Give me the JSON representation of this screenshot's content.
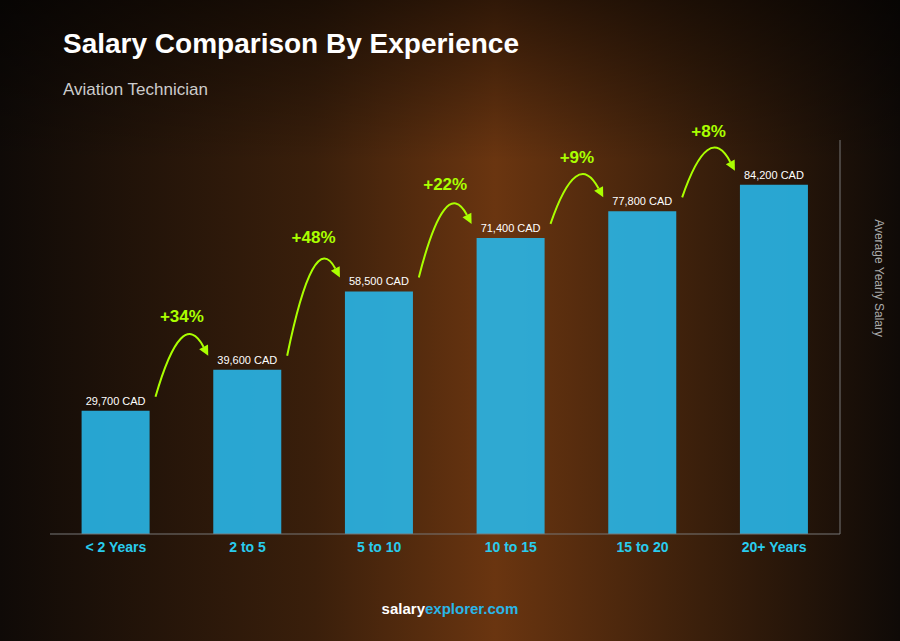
{
  "chart_data": {
    "type": "bar",
    "title": "Salary Comparison By Experience",
    "subtitle": "Aviation Technician",
    "categories": [
      "< 2 Years",
      "2 to 5",
      "5 to 10",
      "10 to 15",
      "15 to 20",
      "20+ Years"
    ],
    "values": [
      29700,
      39600,
      58500,
      71400,
      77800,
      84200
    ],
    "value_labels": [
      "29,700 CAD",
      "39,600 CAD",
      "58,500 CAD",
      "71,400 CAD",
      "77,800 CAD",
      "84,200 CAD"
    ],
    "data_labels": true,
    "annotations": [
      "+34%",
      "+48%",
      "+22%",
      "+9%",
      "+8%"
    ],
    "ylabel": "Average Yearly Salary",
    "footer": [
      "salary",
      "explorer.com"
    ],
    "color": "#29B6E8",
    "ylim": [
      0,
      95000
    ],
    "tick_labels": "x"
  }
}
